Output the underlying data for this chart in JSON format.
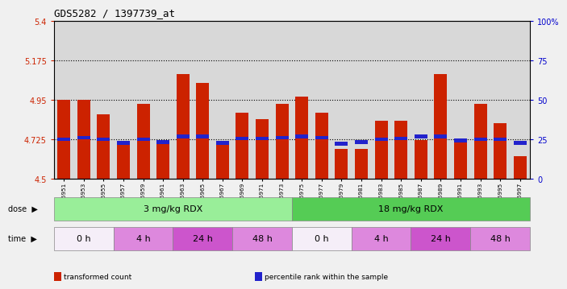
{
  "title": "GDS5282 / 1397739_at",
  "samples": [
    "GSM306951",
    "GSM306953",
    "GSM306955",
    "GSM306957",
    "GSM306959",
    "GSM306961",
    "GSM306963",
    "GSM306965",
    "GSM306967",
    "GSM306969",
    "GSM306971",
    "GSM306973",
    "GSM306975",
    "GSM306977",
    "GSM306979",
    "GSM306981",
    "GSM306983",
    "GSM306985",
    "GSM306987",
    "GSM306989",
    "GSM306991",
    "GSM306993",
    "GSM306995",
    "GSM306997"
  ],
  "red_values": [
    4.95,
    4.95,
    4.87,
    4.7,
    4.93,
    4.72,
    5.1,
    5.05,
    4.71,
    4.88,
    4.84,
    4.93,
    4.97,
    4.88,
    4.67,
    4.67,
    4.83,
    4.83,
    4.72,
    5.1,
    4.72,
    4.93,
    4.82,
    4.63
  ],
  "blue_values": [
    4.715,
    4.725,
    4.715,
    4.695,
    4.715,
    4.7,
    4.73,
    4.73,
    4.695,
    4.72,
    4.72,
    4.725,
    4.73,
    4.725,
    4.69,
    4.7,
    4.715,
    4.72,
    4.73,
    4.73,
    4.71,
    4.715,
    4.715,
    4.695
  ],
  "ymin": 4.5,
  "ymax": 5.4,
  "y_left_ticks": [
    4.5,
    4.725,
    4.95,
    5.175,
    5.4
  ],
  "y_right_ticks": [
    0,
    25,
    50,
    75,
    100
  ],
  "hlines": [
    4.725,
    4.95,
    5.175
  ],
  "bar_color": "#cc2200",
  "blue_color": "#2222cc",
  "dose_groups": [
    {
      "label": "3 mg/kg RDX",
      "start": 0,
      "end": 12,
      "color": "#99ee99"
    },
    {
      "label": "18 mg/kg RDX",
      "start": 12,
      "end": 24,
      "color": "#55cc55"
    }
  ],
  "time_groups": [
    {
      "label": "0 h",
      "start": 0,
      "end": 3,
      "color": "#f5eef8"
    },
    {
      "label": "4 h",
      "start": 3,
      "end": 6,
      "color": "#dd88dd"
    },
    {
      "label": "24 h",
      "start": 6,
      "end": 9,
      "color": "#cc55cc"
    },
    {
      "label": "48 h",
      "start": 9,
      "end": 12,
      "color": "#dd88dd"
    },
    {
      "label": "0 h",
      "start": 12,
      "end": 15,
      "color": "#f5eef8"
    },
    {
      "label": "4 h",
      "start": 15,
      "end": 18,
      "color": "#dd88dd"
    },
    {
      "label": "24 h",
      "start": 18,
      "end": 21,
      "color": "#cc55cc"
    },
    {
      "label": "48 h",
      "start": 21,
      "end": 24,
      "color": "#dd88dd"
    }
  ],
  "legend_items": [
    {
      "label": "transformed count",
      "color": "#cc2200"
    },
    {
      "label": "percentile rank within the sample",
      "color": "#2222cc"
    }
  ],
  "bg_color": "#d8d8d8",
  "fig_bg": "#f0f0f0"
}
